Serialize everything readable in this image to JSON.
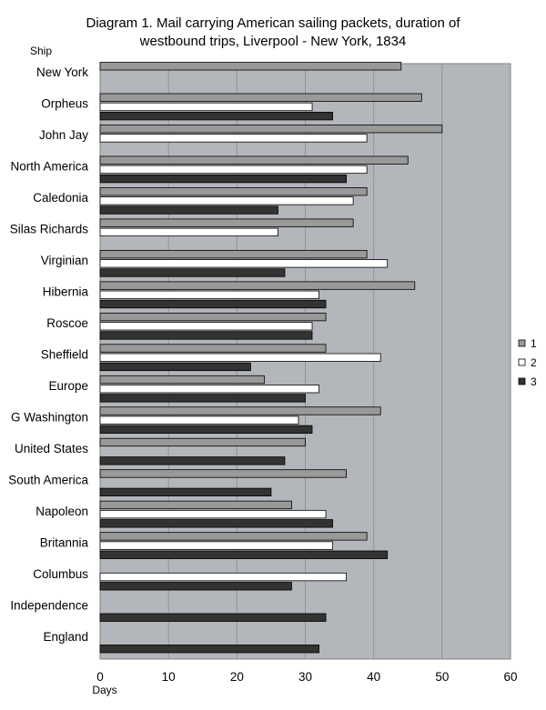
{
  "chart_data": {
    "type": "bar",
    "orientation": "horizontal",
    "title_lines": [
      "Diagram 1. Mail carrying American sailing packets, duration of",
      "westbound trips, Liverpool - New York, 1834"
    ],
    "ylabel": "Ship",
    "xlabel": "Days",
    "xlim": [
      0,
      60
    ],
    "xticks": [
      "0",
      "10",
      "20",
      "30",
      "40",
      "50",
      "60"
    ],
    "grid": "vertical",
    "legend_position": "right",
    "categories": [
      "New York",
      "Orpheus",
      "John Jay",
      "North America",
      "Caledonia",
      "Silas Richards",
      "Virginian",
      "Hibernia",
      "Roscoe",
      "Sheffield",
      "Europe",
      "G Washington",
      "United States",
      "South America",
      "Napoleon",
      "Britannia",
      "Columbus",
      "Independence",
      "England"
    ],
    "series": [
      {
        "name": "1",
        "color": "#999999",
        "values": [
          44,
          47,
          50,
          45,
          39,
          37,
          39,
          46,
          33,
          33,
          24,
          41,
          30,
          36,
          28,
          39,
          null,
          null,
          null
        ]
      },
      {
        "name": "2",
        "color": "#ffffff",
        "values": [
          null,
          31,
          39,
          39,
          37,
          26,
          42,
          32,
          31,
          41,
          32,
          29,
          null,
          null,
          33,
          34,
          36,
          null,
          null
        ]
      },
      {
        "name": "3",
        "color": "#333333",
        "values": [
          null,
          34,
          null,
          36,
          26,
          null,
          27,
          33,
          31,
          22,
          30,
          31,
          27,
          25,
          34,
          42,
          28,
          33,
          32
        ]
      }
    ],
    "plot_background": "#b3b6ba"
  }
}
